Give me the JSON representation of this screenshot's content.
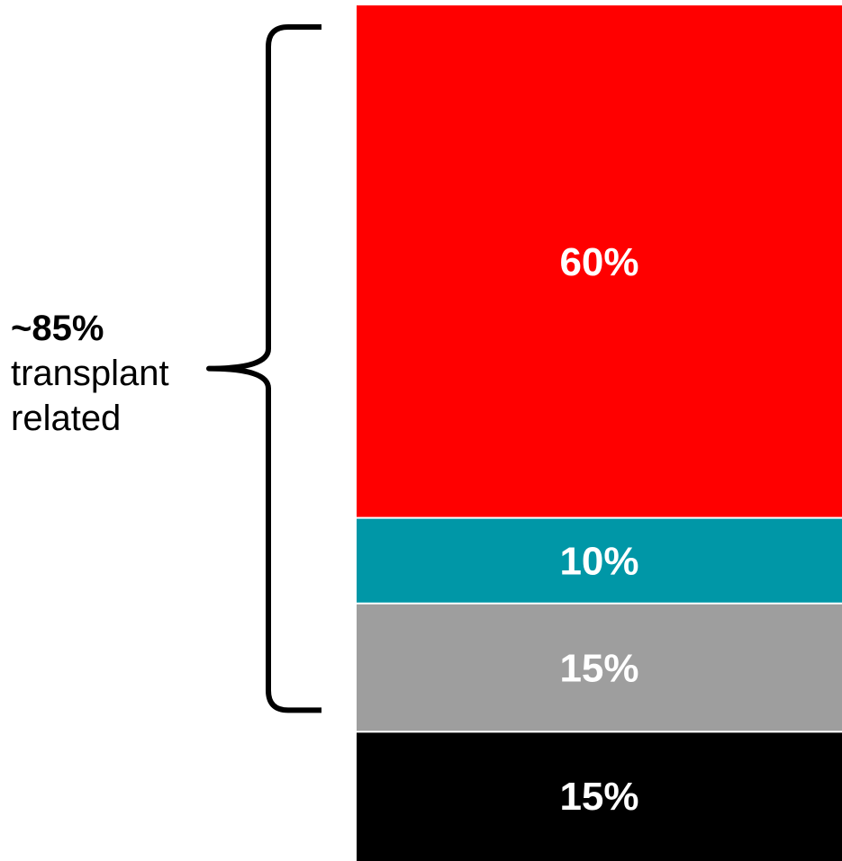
{
  "chart_data": {
    "type": "bar",
    "stacked": true,
    "orientation": "vertical",
    "ylim": [
      0,
      100
    ],
    "categories": [
      ""
    ],
    "series": [
      {
        "label": "60%",
        "value": 60,
        "color": "#ff0000"
      },
      {
        "label": "10%",
        "value": 10,
        "color": "#0097a7"
      },
      {
        "label": "15%",
        "value": 15,
        "color": "#9e9e9e"
      },
      {
        "label": "15%",
        "value": 15,
        "color": "#000000"
      }
    ],
    "annotation": {
      "percent": "~85%",
      "line1": "transplant",
      "line2": "related",
      "spans_values": 85
    }
  }
}
